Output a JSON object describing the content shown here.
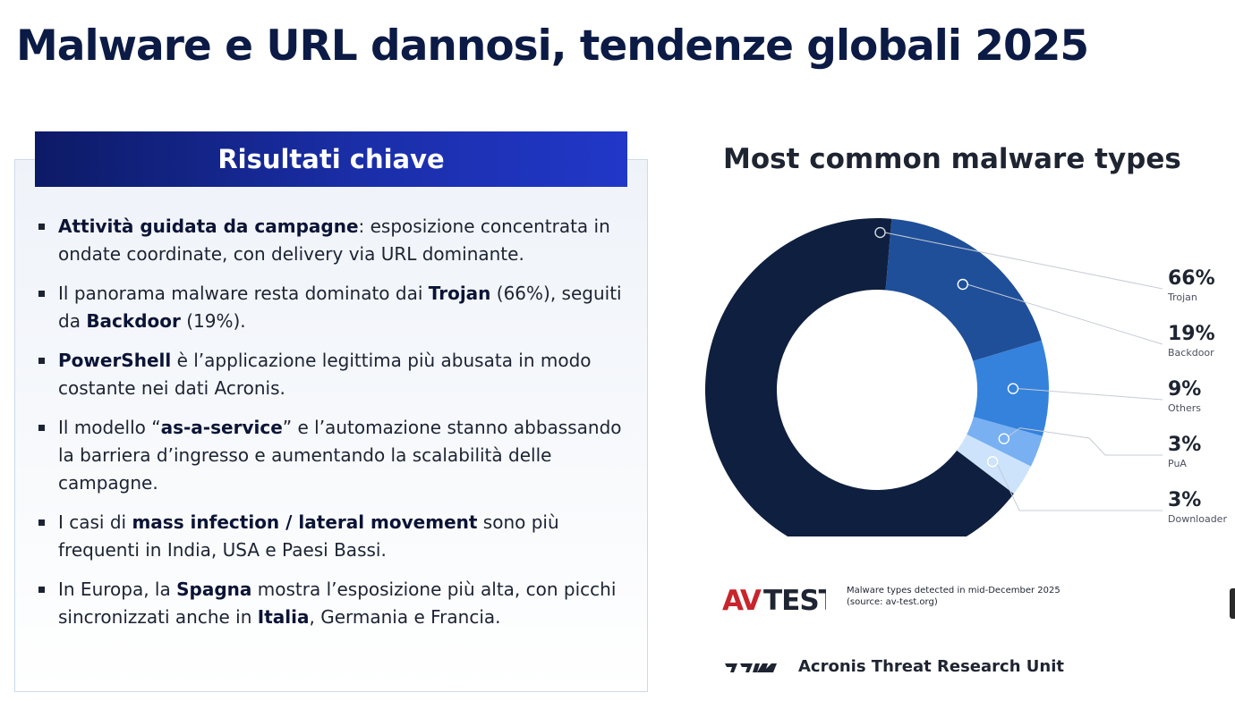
{
  "slide": {
    "title": "Malware e URL dannosi, tendenze globali 2025"
  },
  "findings_panel": {
    "heading": "Risultati chiave",
    "bullets": [
      [
        {
          "b": "Attività guidata da campagne"
        },
        {
          "t": ": esposizione concentrata in ondate coordinate, con delivery via URL dominante."
        }
      ],
      [
        {
          "t": "Il panorama malware resta dominato dai "
        },
        {
          "b": "Trojan"
        },
        {
          "t": " (66%), seguiti da "
        },
        {
          "b": "Backdoor"
        },
        {
          "t": " (19%)."
        }
      ],
      [
        {
          "b": "PowerShell"
        },
        {
          "t": " è l’applicazione legittima più abusata in modo costante nei dati Acronis."
        }
      ],
      [
        {
          "t": "Il modello “"
        },
        {
          "b": "as-a-service"
        },
        {
          "t": "” e l’automazione stanno abbassando la barriera d’ingresso e aumentando la scalabilità delle campagne."
        }
      ],
      [
        {
          "t": "I casi di "
        },
        {
          "b": "mass infection / lateral movement"
        },
        {
          "t": " sono più frequenti in India, USA e Paesi Bassi."
        }
      ],
      [
        {
          "t": "In Europa, la "
        },
        {
          "b": "Spagna"
        },
        {
          "t": " mostra l’esposizione più alta, con picchi sincronizzati anche in "
        },
        {
          "b": "Italia"
        },
        {
          "t": ", Germania e Francia."
        }
      ]
    ]
  },
  "chart_data": {
    "type": "pie",
    "subtype": "donut",
    "title": "Most common malware types",
    "categories": [
      "Trojan",
      "Backdoor",
      "Others",
      "PuA",
      "Downloader"
    ],
    "values": [
      66,
      19,
      9,
      3,
      3
    ],
    "labels": [
      "66%",
      "19%",
      "9%",
      "3%",
      "3%"
    ],
    "colors": [
      "#0f1f3f",
      "#1f4f99",
      "#3582dc",
      "#78b0f2",
      "#cce3fb"
    ],
    "legend_position": "right"
  },
  "source": {
    "logo_text": "AV-TEST",
    "note_line1": "Malware types detected in mid-December 2025",
    "note_line2": "(source: av-test.org)"
  },
  "footer": {
    "brand": "Acronis Threat Research Unit"
  }
}
